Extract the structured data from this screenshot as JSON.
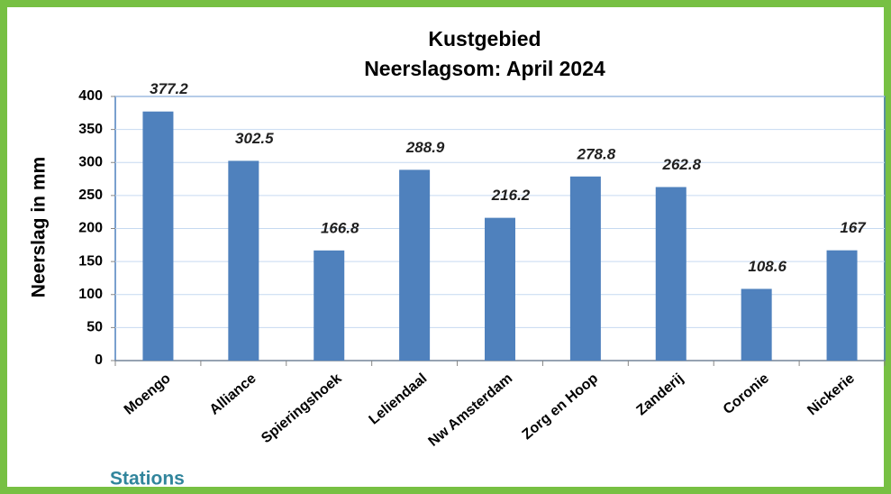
{
  "chart_data": {
    "type": "bar",
    "title": "Kustgebied",
    "subtitle": "Neerslagsom: April 2024",
    "y_label": "Neerslag in mm",
    "x_label": "Stations",
    "categories": [
      "Moengo",
      "Alliance",
      "Spieringshoek",
      "Leliendaal",
      "Nw Amsterdam",
      "Zorg en Hoop",
      "Zanderij",
      "Coronie",
      "Nickerie"
    ],
    "values": [
      377.2,
      302.5,
      166.8,
      288.9,
      216.2,
      278.8,
      262.8,
      108.6,
      167
    ],
    "color": "#4f81bd",
    "ylim": [
      0,
      400
    ],
    "yticks": [
      0,
      50,
      100,
      150,
      200,
      250,
      300,
      350,
      400
    ],
    "grid": true
  }
}
